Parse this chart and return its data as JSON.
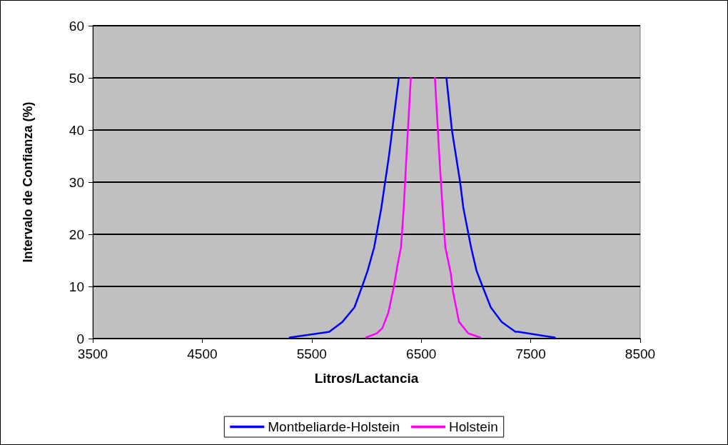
{
  "chart_data": {
    "type": "line",
    "xlabel": "Litros/Lactancia",
    "ylabel": "Intervalo de Confianza (%)",
    "xlim": [
      3500,
      8500
    ],
    "xticks": [
      3500,
      4500,
      5500,
      6500,
      7500,
      8500
    ],
    "ylim": [
      0,
      60
    ],
    "yticks": [
      0,
      10,
      20,
      30,
      40,
      50,
      60
    ],
    "grid": "y",
    "legend": "bottom",
    "marker": "none",
    "line_style": "solid",
    "series": [
      {
        "name": "Montbeliarde-Holstein",
        "color": "#0000ff",
        "x": [
          5300,
          5630,
          5660,
          5780,
          5890,
          5960,
          6010,
          6070,
          6135,
          6205,
          6295,
          null,
          6730,
          6780,
          6855,
          6885,
          6955,
          7005,
          7060,
          7135,
          7235,
          7360,
          7385,
          7720
        ],
        "values": [
          0.2,
          1.2,
          1.3,
          3.2,
          6,
          10,
          13,
          17.5,
          25,
          35,
          50,
          null,
          50,
          40,
          30,
          25,
          17.5,
          13,
          10,
          6,
          3.2,
          1.3,
          1.3,
          0.2
        ]
      },
      {
        "name": "Holstein",
        "color": "#ff00ff",
        "x": [
          5995,
          6095,
          6145,
          6200,
          6250,
          6285,
          6315,
          6340,
          6365,
          6405,
          null,
          6625,
          6665,
          6695,
          6720,
          6770,
          6790,
          6845,
          6930,
          7040
        ],
        "values": [
          0.2,
          1,
          2,
          5,
          10,
          14.3,
          17.5,
          25,
          35,
          50,
          null,
          50,
          35,
          25,
          17.5,
          12.5,
          9,
          3.2,
          1,
          0.2
        ]
      }
    ]
  }
}
